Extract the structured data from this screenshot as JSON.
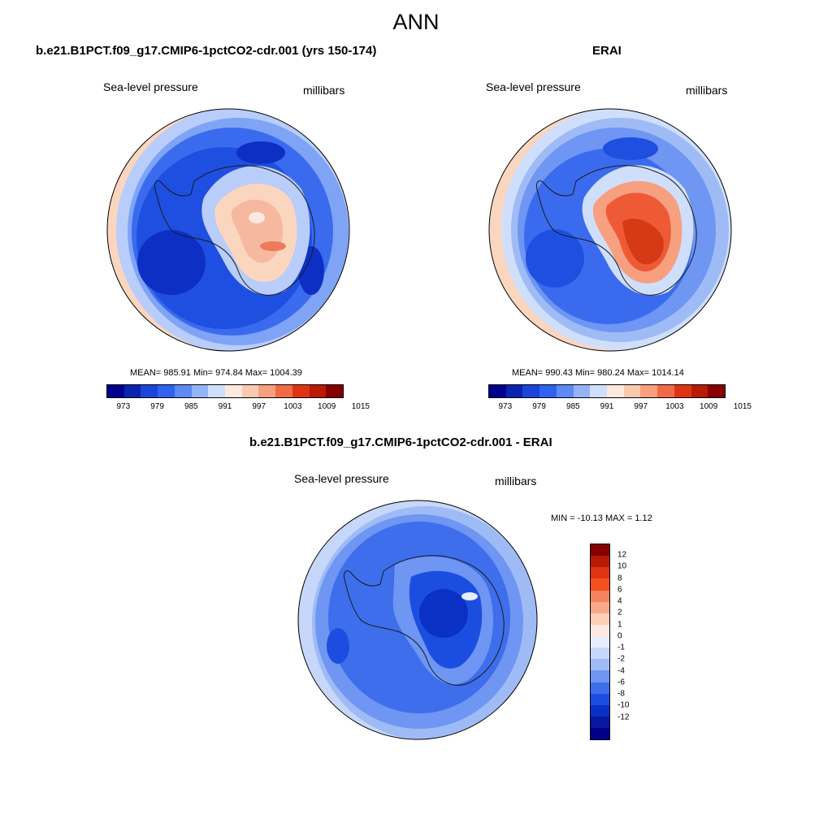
{
  "figure": {
    "title": "ANN"
  },
  "colors": {
    "ocean_low": "#1f4fe0",
    "ocean_mid": "#2f66ee",
    "ocean_deep": "#0d2fc4",
    "ring_light": "#7fa3f5",
    "ring_pale": "#b8cdfa",
    "rim_peach": "#fbd6bf",
    "ice_low": "#f7b8a0",
    "ice_high": "#e2452a",
    "coast": "#1a1a1a"
  },
  "chart_data": [
    {
      "type": "heatmap",
      "name": "model",
      "title": "b.e21.B1PCT.f09_g17.CMIP6-1pctCO2-cdr.001 (yrs 150-174)",
      "variable": "Sea-level pressure",
      "units": "millibars",
      "stats": "MEAN= 985.91  Min= 974.84  Max= 1004.39",
      "mean": 985.91,
      "min": 974.84,
      "max": 1004.39,
      "colorbar": {
        "orientation": "horizontal",
        "colors": [
          "#00008a",
          "#0a24b0",
          "#1a45d8",
          "#2f63ee",
          "#5d8af3",
          "#94b3f7",
          "#cfdffb",
          "#fde9de",
          "#fbc9b0",
          "#f79f7e",
          "#f06a48",
          "#dd3512",
          "#b81a04",
          "#870000"
        ],
        "tick_labels": [
          "973",
          "979",
          "985",
          "991",
          "997",
          "1003",
          "1009",
          "1015"
        ]
      }
    },
    {
      "type": "heatmap",
      "name": "obs",
      "title": "ERAI",
      "variable": "Sea-level pressure",
      "units": "millibars",
      "stats": "MEAN= 990.43  Min= 980.24  Max= 1014.14",
      "mean": 990.43,
      "min": 980.24,
      "max": 1014.14,
      "colorbar": {
        "orientation": "horizontal",
        "colors": [
          "#00008a",
          "#0a24b0",
          "#1a45d8",
          "#2f63ee",
          "#5d8af3",
          "#94b3f7",
          "#cfdffb",
          "#fde9de",
          "#fbc9b0",
          "#f79f7e",
          "#f06a48",
          "#dd3512",
          "#b81a04",
          "#870000"
        ],
        "tick_labels": [
          "973",
          "979",
          "985",
          "991",
          "997",
          "1003",
          "1009",
          "1015"
        ]
      }
    },
    {
      "type": "heatmap",
      "name": "diff",
      "title": "b.e21.B1PCT.f09_g17.CMIP6-1pctCO2-cdr.001 - ERAI",
      "variable": "Sea-level pressure",
      "units": "millibars",
      "stats": "MIN = -10.13 MAX =   1.12",
      "min": -10.13,
      "max": 1.12,
      "colorbar": {
        "orientation": "vertical",
        "colors_top_to_bottom": [
          "#870000",
          "#b81a04",
          "#dd3512",
          "#f5501f",
          "#f7835e",
          "#f9a98a",
          "#fbcfb8",
          "#fde9de",
          "#e6eefc",
          "#c6d7fa",
          "#9fbbf6",
          "#6e96f2",
          "#3e6eec",
          "#1b4ee0",
          "#0a30c4",
          "#0818a0",
          "#00008a"
        ],
        "tick_labels_top_to_bottom": [
          "12",
          "10",
          "8",
          "6",
          "4",
          "2",
          "1",
          "0",
          "-1",
          "-2",
          "-4",
          "-6",
          "-8",
          "-10",
          "-12"
        ]
      }
    }
  ]
}
